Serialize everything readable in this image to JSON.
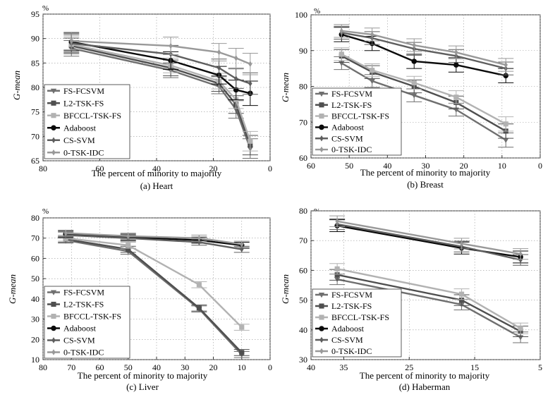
{
  "styles": {
    "FS-FCSVM": {
      "color": "#6f6f6f",
      "marker": "tri"
    },
    "L2-TSK-FS": {
      "color": "#4f4f4f",
      "marker": "square"
    },
    "BFCCL-TSK-FS": {
      "color": "#b2b2b2",
      "marker": "square"
    },
    "Adaboost": {
      "color": "#0a0a0a",
      "marker": "circle"
    },
    "CS-SVM": {
      "color": "#5e5e5e",
      "marker": "diamond"
    },
    "0-TSK-IDC": {
      "color": "#999999",
      "marker": "diamond"
    }
  },
  "chart_data": [
    {
      "type": "line",
      "title": "(a) Heart",
      "xlabel": "The percent of minority to majority",
      "ylabel": "G-mean",
      "unit": "%",
      "xlim": [
        80,
        0
      ],
      "ylim": [
        65,
        95
      ],
      "xticks": [
        80,
        60,
        40,
        20,
        0
      ],
      "yticks": [
        65,
        70,
        75,
        80,
        85,
        90,
        95
      ],
      "grid": true,
      "legend": "lower-left",
      "series": [
        {
          "name": "FS-FCSVM",
          "x": [
            70,
            35,
            18,
            12,
            7
          ],
          "y": [
            88.0,
            83.5,
            80.2,
            75.5,
            67.5
          ],
          "err": [
            1.6,
            1.5,
            1.5,
            1.8,
            2.0
          ]
        },
        {
          "name": "L2-TSK-FS",
          "x": [
            70,
            35,
            18,
            12,
            7
          ],
          "y": [
            88.5,
            84.0,
            80.8,
            76.5,
            68.2
          ],
          "err": [
            1.6,
            1.6,
            1.6,
            1.8,
            2.0
          ]
        },
        {
          "name": "BFCCL-TSK-FS",
          "x": [
            70,
            35,
            18,
            12,
            7
          ],
          "y": [
            88.8,
            84.5,
            81.3,
            77.5,
            69.0
          ],
          "err": [
            1.7,
            1.5,
            1.6,
            1.8,
            2.0
          ]
        },
        {
          "name": "Adaboost",
          "x": [
            70,
            35,
            18,
            12,
            7
          ],
          "y": [
            89.3,
            85.5,
            82.5,
            79.5,
            78.8
          ],
          "err": [
            1.8,
            1.8,
            1.8,
            2.0,
            2.5
          ]
        },
        {
          "name": "CS-SVM",
          "x": [
            70,
            35,
            18,
            12,
            7
          ],
          "y": [
            89.0,
            86.8,
            84.0,
            81.8,
            80.8
          ],
          "err": [
            1.8,
            1.8,
            1.8,
            2.0,
            2.2
          ]
        },
        {
          "name": "0-TSK-IDC",
          "x": [
            70,
            35,
            18,
            12,
            7
          ],
          "y": [
            89.5,
            88.5,
            87.2,
            86.0,
            84.8
          ],
          "err": [
            1.8,
            1.8,
            1.8,
            2.0,
            2.2
          ]
        }
      ]
    },
    {
      "type": "line",
      "title": "(b) Breast",
      "xlabel": "The percent of minority to majority",
      "ylabel": "G-mean",
      "unit": "%",
      "xlim": [
        60,
        0
      ],
      "ylim": [
        60,
        100
      ],
      "xticks": [
        60,
        50,
        40,
        30,
        20,
        10,
        0
      ],
      "yticks": [
        60,
        70,
        80,
        90,
        100
      ],
      "grid": true,
      "legend": "lower-left",
      "series": [
        {
          "name": "FS-FCSVM",
          "x": [
            52,
            44,
            33,
            22,
            9
          ],
          "y": [
            86.5,
            81.5,
            77.5,
            73.5,
            65.0
          ],
          "err": [
            1.8,
            1.8,
            1.8,
            1.8,
            2.0
          ]
        },
        {
          "name": "L2-TSK-FS",
          "x": [
            52,
            44,
            33,
            22,
            9
          ],
          "y": [
            88.5,
            84.0,
            80.0,
            75.5,
            67.5
          ],
          "err": [
            1.8,
            1.8,
            1.8,
            1.8,
            2.0
          ]
        },
        {
          "name": "BFCCL-TSK-FS",
          "x": [
            52,
            44,
            33,
            22,
            9
          ],
          "y": [
            89.0,
            84.5,
            81.0,
            77.0,
            69.5
          ],
          "err": [
            1.8,
            1.8,
            1.8,
            1.8,
            2.0
          ]
        },
        {
          "name": "Adaboost",
          "x": [
            52,
            44,
            33,
            22,
            9
          ],
          "y": [
            94.5,
            92.0,
            87.0,
            86.0,
            83.0
          ],
          "err": [
            2.0,
            2.0,
            2.0,
            2.0,
            2.0
          ]
        },
        {
          "name": "CS-SVM",
          "x": [
            52,
            44,
            33,
            22,
            9
          ],
          "y": [
            95.0,
            93.5,
            90.5,
            88.5,
            85.0
          ],
          "err": [
            1.8,
            1.8,
            1.8,
            1.8,
            1.8
          ]
        },
        {
          "name": "0-TSK-IDC",
          "x": [
            52,
            44,
            33,
            22,
            9
          ],
          "y": [
            95.5,
            94.5,
            91.5,
            89.5,
            86.0
          ],
          "err": [
            1.8,
            1.8,
            1.8,
            1.8,
            1.8
          ]
        }
      ]
    },
    {
      "type": "line",
      "title": "(c) Liver",
      "xlabel": "The percent of minority to majority",
      "ylabel": "G-mean",
      "unit": "%",
      "xlim": [
        80,
        0
      ],
      "ylim": [
        10,
        80
      ],
      "xticks": [
        80,
        70,
        60,
        50,
        40,
        30,
        20,
        10,
        0
      ],
      "yticks": [
        10,
        20,
        30,
        40,
        50,
        60,
        70,
        80
      ],
      "grid": true,
      "legend": "lower-left",
      "series": [
        {
          "name": "FS-FCSVM",
          "x": [
            72,
            50,
            25,
            10
          ],
          "y": [
            69.0,
            63.5,
            35.0,
            12.5
          ],
          "err": [
            1.5,
            1.5,
            1.5,
            1.5
          ]
        },
        {
          "name": "L2-TSK-FS",
          "x": [
            72,
            50,
            25,
            10
          ],
          "y": [
            69.5,
            64.5,
            35.5,
            13.5
          ],
          "err": [
            1.5,
            1.5,
            1.5,
            1.5
          ]
        },
        {
          "name": "BFCCL-TSK-FS",
          "x": [
            72,
            50,
            25,
            10
          ],
          "y": [
            70.0,
            66.5,
            47.0,
            26.0
          ],
          "err": [
            1.5,
            1.5,
            1.5,
            1.5
          ]
        },
        {
          "name": "Adaboost",
          "x": [
            72,
            50,
            25,
            10
          ],
          "y": [
            72.0,
            70.5,
            69.0,
            66.5
          ],
          "err": [
            1.5,
            1.5,
            1.5,
            1.5
          ]
        },
        {
          "name": "CS-SVM",
          "x": [
            72,
            50,
            25,
            10
          ],
          "y": [
            71.5,
            70.0,
            68.0,
            64.5
          ],
          "err": [
            1.5,
            1.5,
            1.5,
            1.5
          ]
        },
        {
          "name": "0-TSK-IDC",
          "x": [
            72,
            50,
            25,
            10
          ],
          "y": [
            72.5,
            71.0,
            70.0,
            67.0
          ],
          "err": [
            1.5,
            1.5,
            1.5,
            1.5
          ]
        }
      ]
    },
    {
      "type": "line",
      "title": "(d) Haberman",
      "xlabel": "The percent of minority to majority",
      "ylabel": "G-mean",
      "unit": "%",
      "xlim": [
        40,
        5
      ],
      "ylim": [
        30,
        80
      ],
      "xticks": [
        40,
        35,
        25,
        15,
        5
      ],
      "yticks": [
        30,
        40,
        50,
        60,
        70,
        80
      ],
      "grid": true,
      "legend": "lower-left",
      "series": [
        {
          "name": "FS-FCSVM",
          "x": [
            36,
            17,
            8
          ],
          "y": [
            57.0,
            48.5,
            37.5
          ],
          "err": [
            1.8,
            1.8,
            1.8
          ]
        },
        {
          "name": "L2-TSK-FS",
          "x": [
            36,
            17,
            8
          ],
          "y": [
            58.5,
            50.0,
            39.5
          ],
          "err": [
            1.8,
            1.8,
            1.8
          ]
        },
        {
          "name": "BFCCL-TSK-FS",
          "x": [
            36,
            17,
            8
          ],
          "y": [
            60.5,
            52.0,
            40.5
          ],
          "err": [
            1.8,
            1.8,
            1.8
          ]
        },
        {
          "name": "Adaboost",
          "x": [
            36,
            17,
            8
          ],
          "y": [
            75.0,
            67.5,
            64.5
          ],
          "err": [
            2.0,
            2.0,
            2.0
          ]
        },
        {
          "name": "CS-SVM",
          "x": [
            36,
            17,
            8
          ],
          "y": [
            75.5,
            68.0,
            63.5
          ],
          "err": [
            1.8,
            1.8,
            1.8
          ]
        },
        {
          "name": "0-TSK-IDC",
          "x": [
            36,
            17,
            8
          ],
          "y": [
            76.5,
            69.0,
            65.5
          ],
          "err": [
            1.8,
            1.8,
            1.8
          ]
        }
      ]
    }
  ]
}
